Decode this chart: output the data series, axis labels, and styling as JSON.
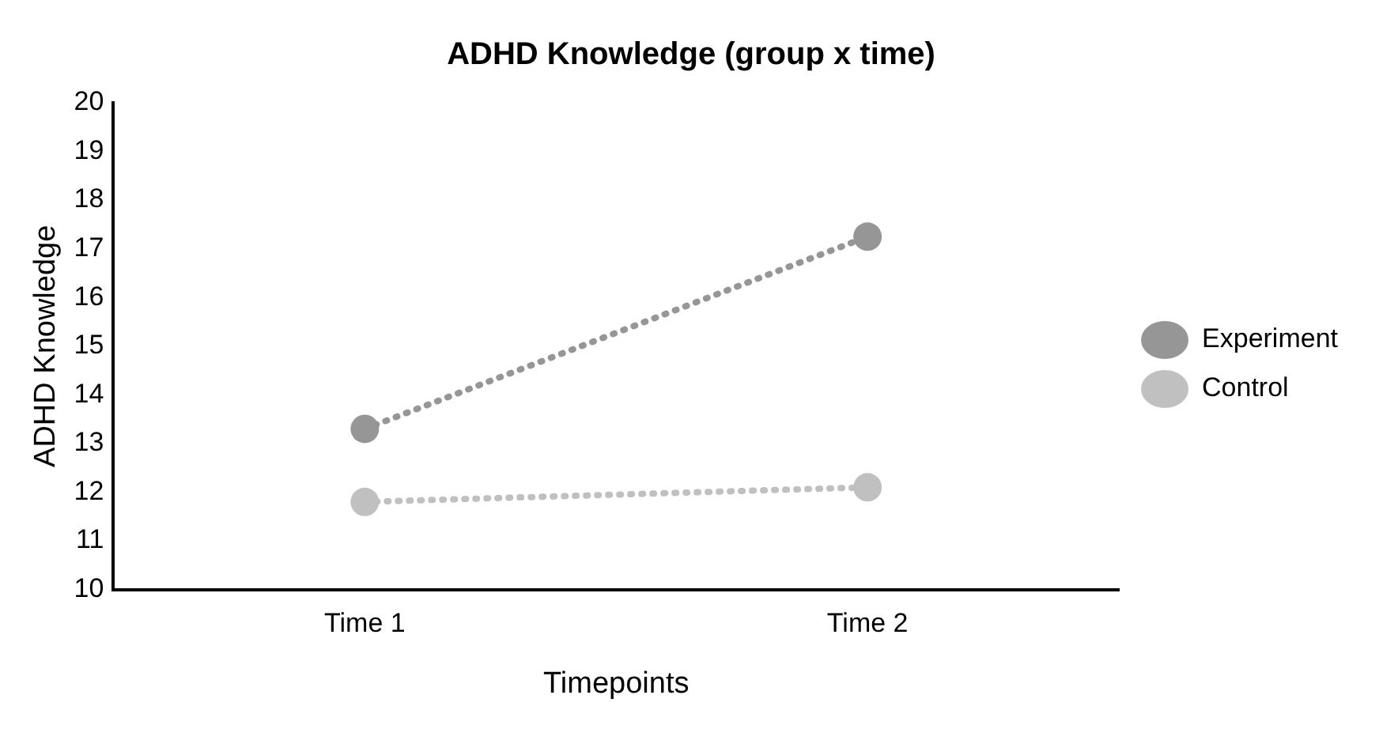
{
  "chart_data": {
    "type": "line",
    "title": "ADHD Knowledge (group x time)",
    "xlabel": "Timepoints",
    "ylabel": "ADHD Knowledge",
    "categories": [
      "Time 1",
      "Time 2"
    ],
    "series": [
      {
        "name": "Experiment",
        "color": "#969696",
        "values": [
          13.3,
          17.25
        ]
      },
      {
        "name": "Control",
        "color": "#c0c0c0",
        "values": [
          11.8,
          12.1
        ]
      }
    ],
    "ylim": [
      10,
      20
    ],
    "yticks": [
      10,
      11,
      12,
      13,
      14,
      15,
      16,
      17,
      18,
      19,
      20
    ],
    "grid": false,
    "legend": "right",
    "marker": "circle",
    "line_style": "dotted"
  }
}
